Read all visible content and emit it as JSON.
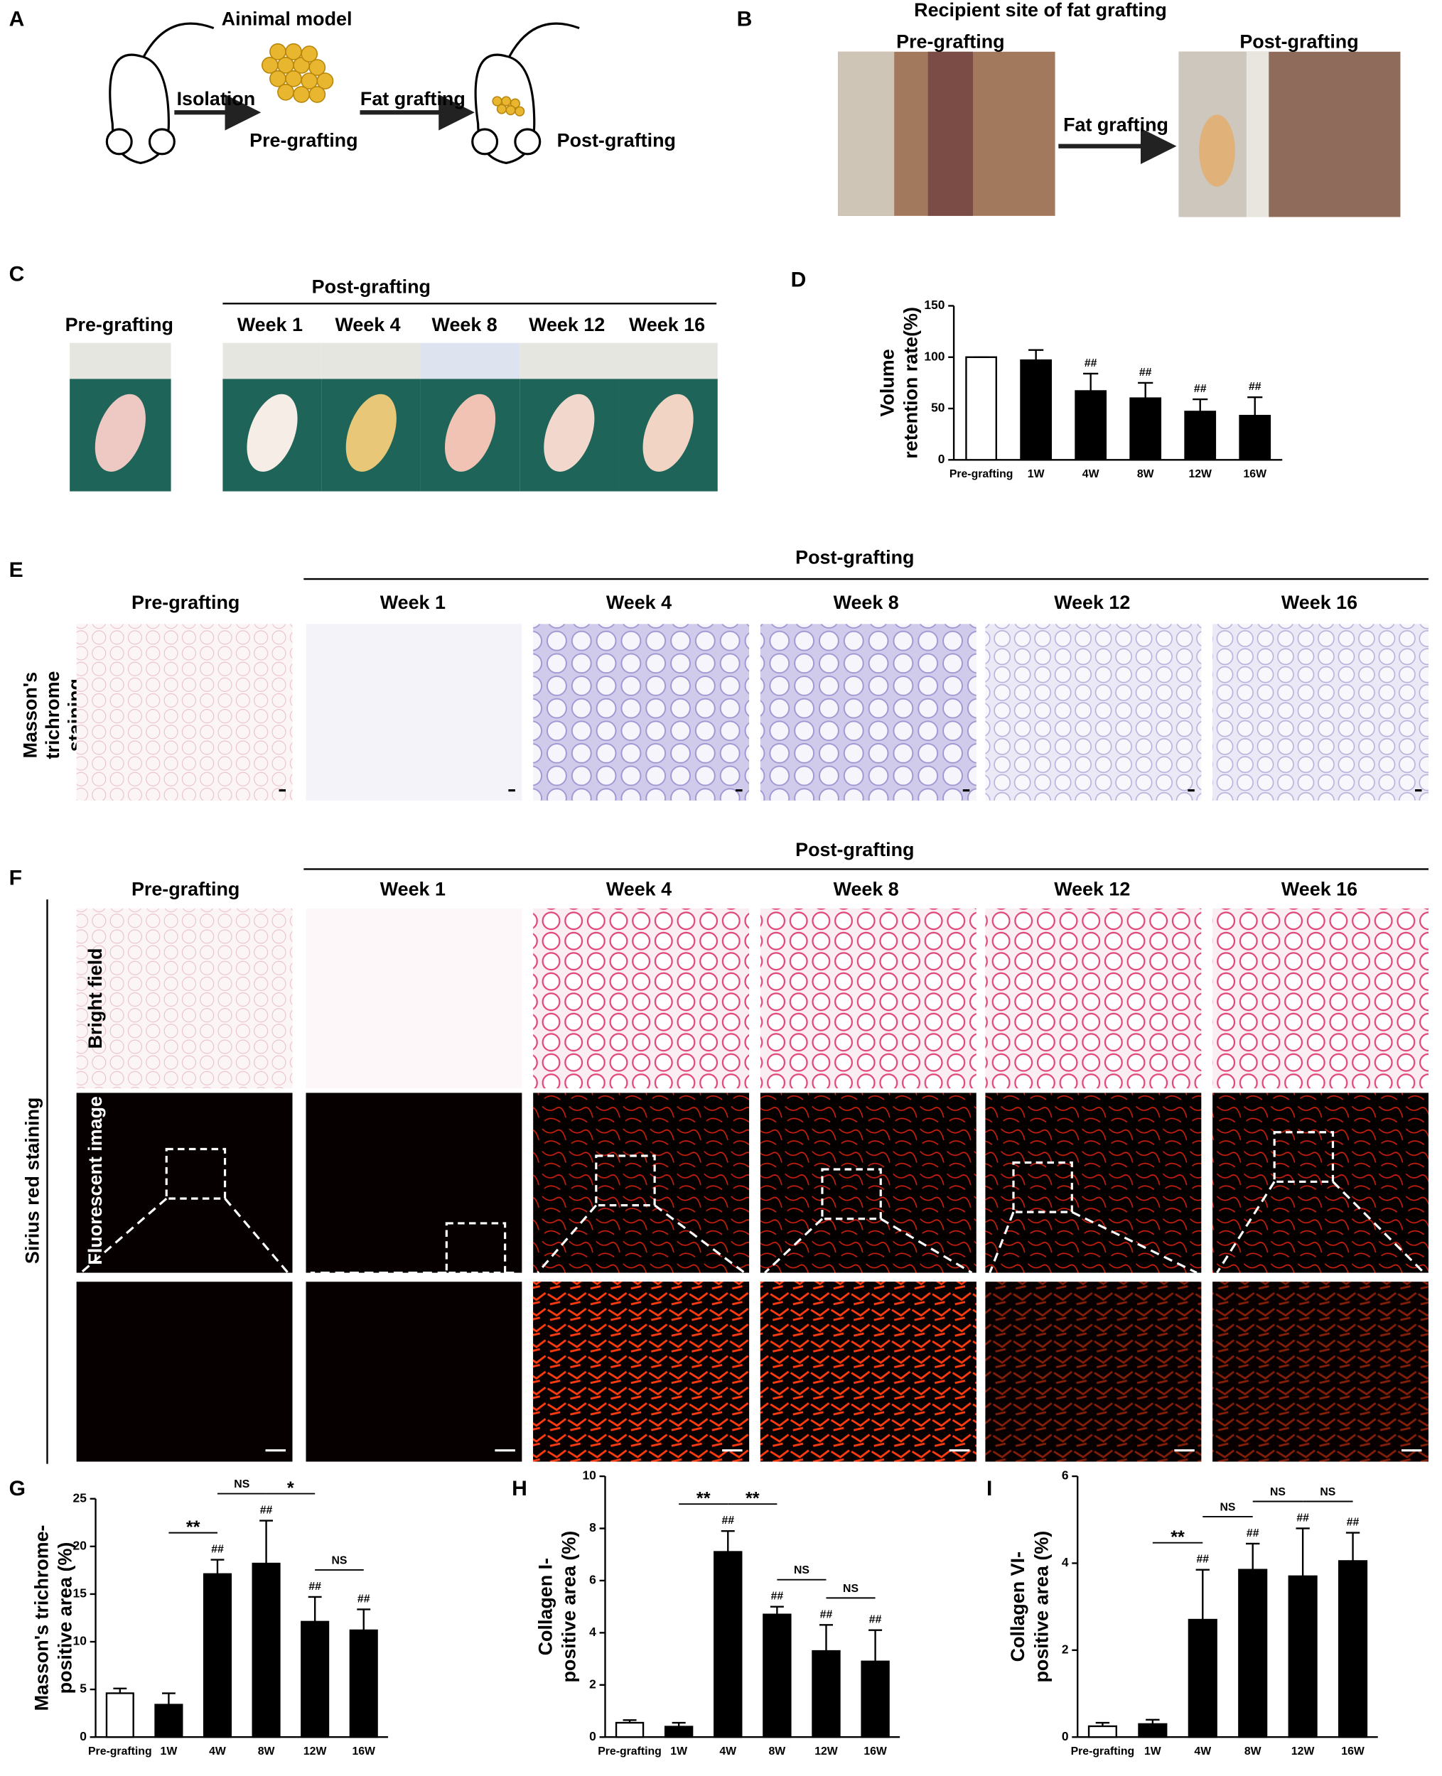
{
  "panels": {
    "A": {
      "letter": "A",
      "title": "Ainimal model",
      "labels": [
        "Isolation",
        "Pre-grafting",
        "Fat  grafting",
        "Post-grafting"
      ]
    },
    "B": {
      "letter": "B",
      "title": "Recipient site of fat grafting",
      "labels": [
        "Pre-grafting",
        "Fat  grafting",
        "Post-grafting"
      ]
    },
    "C": {
      "letter": "C",
      "group": "Post-grafting",
      "columns": [
        "Pre-grafting",
        "Week 1",
        "Week 4",
        "Week 8",
        "Week 12",
        "Week 16"
      ]
    },
    "E": {
      "letter": "E",
      "group": "Post-grafting",
      "columns": [
        "Pre-grafting",
        "Week 1",
        "Week 4",
        "Week 8",
        "Week 12",
        "Week 16"
      ],
      "row_label": [
        "Masson's",
        "trichrome",
        "staining"
      ]
    },
    "F": {
      "letter": "F",
      "group": "Post-grafting",
      "columns": [
        "Pre-grafting",
        "Week 1",
        "Week 4",
        "Week 8",
        "Week 12",
        "Week 16"
      ],
      "side_label": "Sirius red staining",
      "rows": [
        "Bright field",
        "Fluorescent image"
      ]
    }
  },
  "chart_data": [
    {
      "type": "bar",
      "panel": "D",
      "ylabel": [
        "Volume",
        "retention rate(%)"
      ],
      "categories": [
        "Pre-grafting",
        "1W",
        "4W",
        "8W",
        "12W",
        "16W"
      ],
      "values": [
        100,
        97,
        67,
        60,
        47,
        43
      ],
      "errors": [
        0,
        10,
        17,
        15,
        12,
        18
      ],
      "bar_colors": [
        "#ffffff",
        "#000000",
        "#000000",
        "#000000",
        "#000000",
        "#000000"
      ],
      "ylim": [
        0,
        150
      ],
      "yticks": [
        0,
        50,
        100,
        150
      ],
      "marks": [
        {
          "at": "4W",
          "label": "##"
        },
        {
          "at": "8W",
          "label": "##"
        },
        {
          "at": "12W",
          "label": "##"
        },
        {
          "at": "16W",
          "label": "##"
        }
      ],
      "brackets": []
    },
    {
      "type": "bar",
      "panel": "G",
      "ylabel": [
        "Masson's trichrome-",
        "positive area (%)"
      ],
      "categories": [
        "Pre-grafting",
        "1W",
        "4W",
        "8W",
        "12W",
        "16W"
      ],
      "values": [
        4.6,
        3.4,
        17.1,
        18.2,
        12.1,
        11.2
      ],
      "errors": [
        0.5,
        1.2,
        1.5,
        4.5,
        2.6,
        2.2
      ],
      "bar_colors": [
        "#ffffff",
        "#000000",
        "#000000",
        "#000000",
        "#000000",
        "#000000"
      ],
      "ylim": [
        0,
        25
      ],
      "yticks": [
        0,
        5,
        10,
        15,
        20,
        25
      ],
      "marks": [
        {
          "at": "4W",
          "label": "##"
        },
        {
          "at": "8W",
          "label": "##"
        },
        {
          "at": "12W",
          "label": "##"
        },
        {
          "at": "16W",
          "label": "##"
        }
      ],
      "brackets": [
        {
          "from": "1W",
          "to": "4W",
          "label": "**"
        },
        {
          "from": "4W",
          "to": "8W",
          "label": "NS"
        },
        {
          "from": "8W",
          "to": "12W",
          "label": "*"
        },
        {
          "from": "12W",
          "to": "16W",
          "label": "NS"
        }
      ]
    },
    {
      "type": "bar",
      "panel": "H",
      "ylabel": [
        "Collagen I-",
        "positive area (%)"
      ],
      "categories": [
        "Pre-grafting",
        "1W",
        "4W",
        "8W",
        "12W",
        "16W"
      ],
      "values": [
        0.55,
        0.4,
        7.1,
        4.7,
        3.3,
        2.9
      ],
      "errors": [
        0.1,
        0.15,
        0.8,
        0.3,
        1.0,
        1.2
      ],
      "bar_colors": [
        "#ffffff",
        "#000000",
        "#000000",
        "#000000",
        "#000000",
        "#000000"
      ],
      "ylim": [
        0,
        10
      ],
      "yticks": [
        0,
        2,
        4,
        6,
        8,
        10
      ],
      "marks": [
        {
          "at": "4W",
          "label": "##"
        },
        {
          "at": "8W",
          "label": "##"
        },
        {
          "at": "12W",
          "label": "##"
        },
        {
          "at": "16W",
          "label": "##"
        }
      ],
      "brackets": [
        {
          "from": "1W",
          "to": "4W",
          "label": "**"
        },
        {
          "from": "4W",
          "to": "8W",
          "label": "**"
        },
        {
          "from": "8W",
          "to": "12W",
          "label": "NS"
        },
        {
          "from": "12W",
          "to": "16W",
          "label": "NS"
        }
      ]
    },
    {
      "type": "bar",
      "panel": "I",
      "ylabel": [
        "Collagen VI-",
        "positive area (%)"
      ],
      "categories": [
        "Pre-grafting",
        "1W",
        "4W",
        "8W",
        "12W",
        "16W"
      ],
      "values": [
        0.25,
        0.3,
        2.7,
        3.85,
        3.7,
        4.05
      ],
      "errors": [
        0.08,
        0.1,
        1.15,
        0.6,
        1.1,
        0.65
      ],
      "bar_colors": [
        "#ffffff",
        "#000000",
        "#000000",
        "#000000",
        "#000000",
        "#000000"
      ],
      "ylim": [
        0,
        6
      ],
      "yticks": [
        0,
        2,
        4,
        6
      ],
      "marks": [
        {
          "at": "4W",
          "label": "##"
        },
        {
          "at": "8W",
          "label": "##"
        },
        {
          "at": "12W",
          "label": "##"
        },
        {
          "at": "16W",
          "label": "##"
        }
      ],
      "brackets": [
        {
          "from": "1W",
          "to": "4W",
          "label": "**"
        },
        {
          "from": "4W",
          "to": "8W",
          "label": "NS"
        },
        {
          "from": "8W",
          "to": "12W",
          "label": "NS"
        },
        {
          "from": "12W",
          "to": "16W",
          "label": "NS"
        }
      ]
    }
  ]
}
